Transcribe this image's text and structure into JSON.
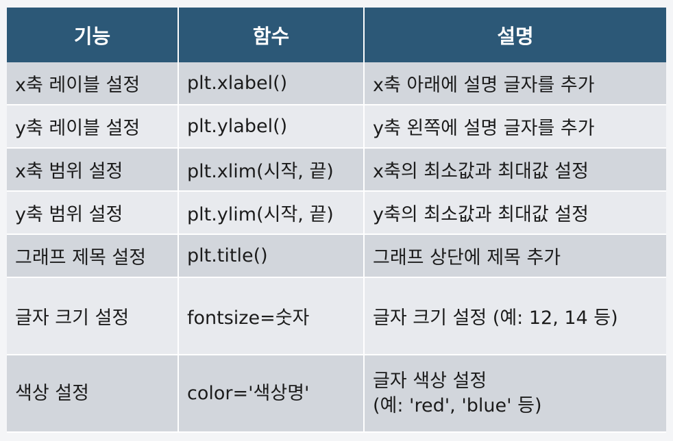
{
  "table": {
    "headers": [
      "기능",
      "함수",
      "설명"
    ],
    "rows": [
      {
        "feature": "x축 레이블 설정",
        "function": "plt.xlabel()",
        "description": "x축 아래에 설명 글자를 추가"
      },
      {
        "feature": "y축 레이블 설정",
        "function": "plt.ylabel()",
        "description": "y축 왼쪽에 설명 글자를 추가"
      },
      {
        "feature": "x축 범위 설정",
        "function": "plt.xlim(시작, 끝)",
        "description": "x축의 최소값과 최대값 설정"
      },
      {
        "feature": "y축 범위 설정",
        "function": "plt.ylim(시작, 끝)",
        "description": "y축의 최소값과 최대값 설정"
      },
      {
        "feature": "그래프 제목 설정",
        "function": "plt.title()",
        "description": "그래프 상단에 제목 추가"
      },
      {
        "feature": "글자 크기 설정",
        "function": "fontsize=숫자",
        "description": "글자 크기 설정 (예: 12, 14 등)"
      },
      {
        "feature": "색상 설정",
        "function": "color='색상명'",
        "description_line1": "글자 색상 설정",
        "description_line2": "(예: 'red', 'blue' 등)"
      }
    ]
  },
  "colors": {
    "header_bg": "#2c5877",
    "header_text": "#ffffff",
    "row_dark": "#d2d6dc",
    "row_light": "#e8eaee"
  }
}
